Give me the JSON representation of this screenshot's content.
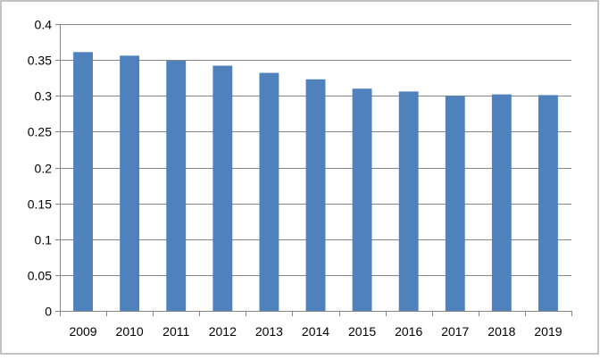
{
  "colors": {
    "bar": "#4F81BD",
    "grid": "#868686",
    "axis": "#868686",
    "border": "#868686",
    "text": "#000000"
  },
  "chart_data": {
    "type": "bar",
    "title": "",
    "xlabel": "",
    "ylabel": "",
    "categories": [
      "2009",
      "2010",
      "2011",
      "2012",
      "2013",
      "2014",
      "2015",
      "2016",
      "2017",
      "2018",
      "2019"
    ],
    "values": [
      0.361,
      0.356,
      0.349,
      0.342,
      0.332,
      0.323,
      0.31,
      0.306,
      0.3,
      0.302,
      0.301
    ],
    "ylim": [
      0,
      0.4
    ],
    "yticks": [
      "0",
      "0.05",
      "0.1",
      "0.15",
      "0.2",
      "0.25",
      "0.3",
      "0.35",
      "0.4"
    ],
    "grid": true,
    "legend": "none"
  }
}
